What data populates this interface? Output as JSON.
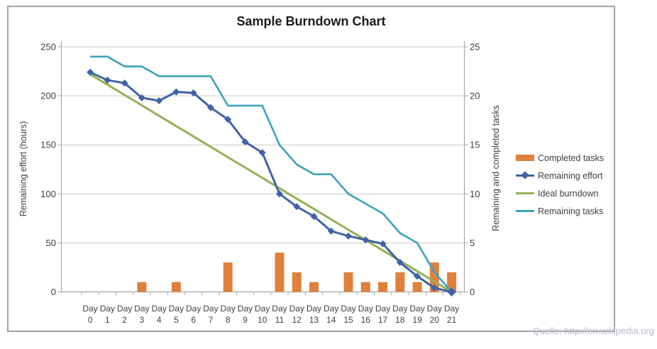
{
  "page": {
    "source_text": "Quelle: http://en.wikipedia.org"
  },
  "chart_data": {
    "type": "combo-bar-line",
    "title": "Sample Burndown Chart",
    "x_prefix": "Day",
    "x_numbers": [
      0,
      1,
      2,
      3,
      4,
      5,
      6,
      7,
      8,
      9,
      10,
      11,
      12,
      13,
      14,
      15,
      16,
      17,
      18,
      19,
      20,
      21
    ],
    "left_axis": {
      "label": "Remaining effort (hours)",
      "ticks": [
        0,
        50,
        100,
        150,
        200,
        250
      ],
      "range": [
        0,
        250
      ]
    },
    "right_axis": {
      "label": "Remaining and  completed tasks",
      "ticks": [
        0,
        5,
        10,
        15,
        20,
        25
      ],
      "range": [
        0,
        25
      ]
    },
    "legend_position": "right",
    "grid": "horizontal",
    "series": [
      {
        "name": "Completed tasks",
        "type": "bar",
        "axis": "right",
        "color": "#df803c",
        "values": [
          0,
          0,
          0,
          1,
          0,
          1,
          0,
          0,
          3,
          0,
          0,
          4,
          2,
          1,
          0,
          2,
          1,
          1,
          2,
          1,
          3,
          2
        ]
      },
      {
        "name": "Remaining effort",
        "type": "line",
        "marker": "diamond",
        "axis": "left",
        "color": "#3f63a6",
        "values": [
          224,
          216,
          213,
          198,
          195,
          204,
          203,
          188,
          176,
          153,
          142,
          100,
          87,
          77,
          62,
          57,
          53,
          49,
          30,
          16,
          4,
          0
        ]
      },
      {
        "name": "Ideal burndown",
        "type": "line",
        "axis": "left",
        "color": "#94b054",
        "values": [
          222,
          211.4,
          200.9,
          190.3,
          179.7,
          169.1,
          158.6,
          148,
          137.4,
          126.9,
          116.3,
          105.7,
          95.1,
          84.6,
          74,
          63.4,
          52.9,
          42.3,
          31.7,
          21.1,
          10.6,
          0
        ]
      },
      {
        "name": "Remaining tasks",
        "type": "line",
        "axis": "right",
        "color": "#3ba3bc",
        "values": [
          24,
          24,
          23,
          23,
          22,
          22,
          22,
          22,
          19,
          19,
          19,
          15,
          13,
          12,
          12,
          10,
          9,
          8,
          6,
          5,
          2,
          0
        ]
      }
    ]
  }
}
